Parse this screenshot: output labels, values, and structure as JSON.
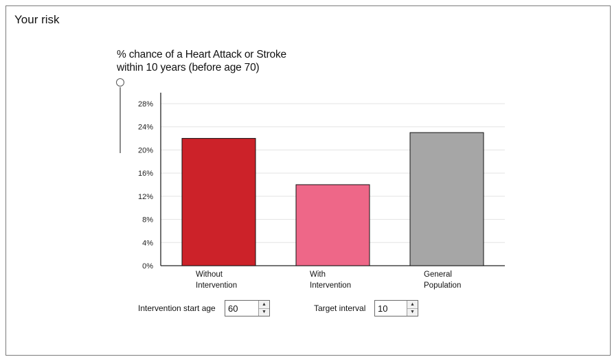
{
  "panel": {
    "title": "Your risk"
  },
  "chart_data": {
    "type": "bar",
    "title_line1": "% chance of a Heart Attack or Stroke",
    "title_line2": "within 10 years (before age 70)",
    "categories": [
      [
        "Without",
        "Intervention"
      ],
      [
        "With",
        "Intervention"
      ],
      [
        "General",
        "Population"
      ]
    ],
    "values": [
      22,
      14,
      23
    ],
    "colors": [
      "#cc2229",
      "#ee6788",
      "#a6a6a6"
    ],
    "y_ticks": [
      0,
      4,
      8,
      12,
      16,
      20,
      24,
      28
    ],
    "y_tick_format": "%",
    "ylim": [
      0,
      30
    ],
    "grid": true
  },
  "controls": {
    "start_age": {
      "label": "Intervention start age",
      "value": "60"
    },
    "interval": {
      "label": "Target interval",
      "value": "10"
    }
  }
}
